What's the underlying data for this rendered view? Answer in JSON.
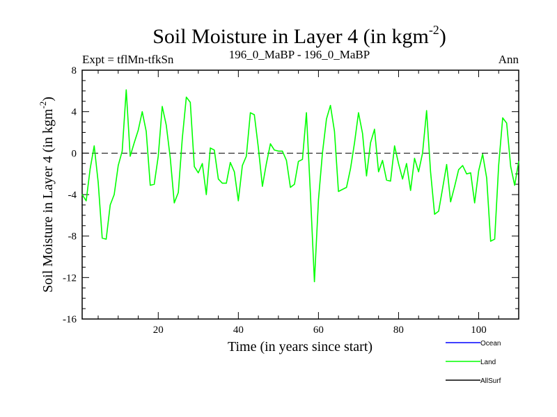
{
  "chart_data": {
    "type": "line",
    "title": "Soil Moisture in Layer 4 (in kgm",
    "title_sup": "-2",
    "title_close": ")",
    "subtitle_left": "Expt = tflMn-tfkSn",
    "subtitle_center": "196_0_MaBP - 196_0_MaBP",
    "subtitle_right": "Ann",
    "xlabel": "Time (in years since start)",
    "ylabel": "Soil Moisture in Layer 4 (in kgm",
    "ylabel_sup": "-2",
    "ylabel_close": ")",
    "xlim": [
      1,
      110
    ],
    "ylim": [
      -16,
      8
    ],
    "x_ticks": [
      20,
      40,
      60,
      80,
      100
    ],
    "y_ticks": [
      8,
      4,
      0,
      -4,
      -8,
      -12,
      -16
    ],
    "reference_line": 0,
    "legend": [
      {
        "name": "Ocean",
        "color": "#0000ff"
      },
      {
        "name": "Land",
        "color": "#00ff00"
      },
      {
        "name": "AllSurf",
        "color": "#000000"
      }
    ],
    "series": [
      {
        "name": "Land",
        "color": "#00ff00",
        "x": [
          1,
          2,
          3,
          4,
          5,
          6,
          7,
          8,
          9,
          10,
          11,
          12,
          13,
          14,
          15,
          16,
          17,
          18,
          19,
          20,
          21,
          22,
          23,
          24,
          25,
          26,
          27,
          28,
          29,
          30,
          31,
          32,
          33,
          34,
          35,
          36,
          37,
          38,
          39,
          40,
          41,
          42,
          43,
          44,
          45,
          46,
          47,
          48,
          49,
          50,
          51,
          52,
          53,
          54,
          55,
          56,
          57,
          58,
          59,
          60,
          61,
          62,
          63,
          64,
          65,
          66,
          67,
          68,
          69,
          70,
          71,
          72,
          73,
          74,
          75,
          76,
          77,
          78,
          79,
          80,
          81,
          82,
          83,
          84,
          85,
          86,
          87,
          88,
          89,
          90,
          91,
          92,
          93,
          94,
          95,
          96,
          97,
          98,
          99,
          100,
          101,
          102,
          103,
          104,
          105,
          106,
          107,
          108,
          109,
          110
        ],
        "values": [
          -4.0,
          -4.6,
          -1.5,
          0.7,
          -2.8,
          -8.2,
          -8.3,
          -5.0,
          -4.0,
          -1.2,
          0.2,
          6.1,
          -0.3,
          1.0,
          2.2,
          4.0,
          2.1,
          -3.1,
          -3.0,
          -0.3,
          4.5,
          2.7,
          -0.5,
          -4.8,
          -3.8,
          1.4,
          5.4,
          4.9,
          -1.3,
          -1.9,
          -1.0,
          -4.0,
          0.5,
          0.3,
          -2.5,
          -2.9,
          -2.9,
          -0.9,
          -1.8,
          -4.6,
          -1.2,
          -0.3,
          3.9,
          3.7,
          0.5,
          -3.2,
          -1.0,
          0.9,
          0.3,
          0.2,
          0.2,
          -0.7,
          -3.3,
          -3.0,
          -0.8,
          -0.6,
          3.9,
          -4.0,
          -12.4,
          -4.5,
          0.0,
          3.3,
          4.6,
          2.1,
          -3.7,
          -3.5,
          -3.3,
          -1.5,
          1.0,
          3.9,
          1.9,
          -2.2,
          1.0,
          2.3,
          -1.8,
          -0.7,
          -2.6,
          -2.7,
          0.7,
          -1.0,
          -2.5,
          -1.0,
          -3.6,
          -0.5,
          -1.8,
          0.0,
          4.1,
          -1.8,
          -5.9,
          -5.6,
          -3.4,
          -1.1,
          -4.7,
          -3.2,
          -1.6,
          -1.2,
          -2.0,
          -1.9,
          -4.8,
          -1.7,
          -0.1,
          -2.4,
          -8.5,
          -8.3,
          -1.2,
          3.4,
          2.9,
          -1.3,
          -3.1,
          -0.8
        ]
      }
    ]
  }
}
